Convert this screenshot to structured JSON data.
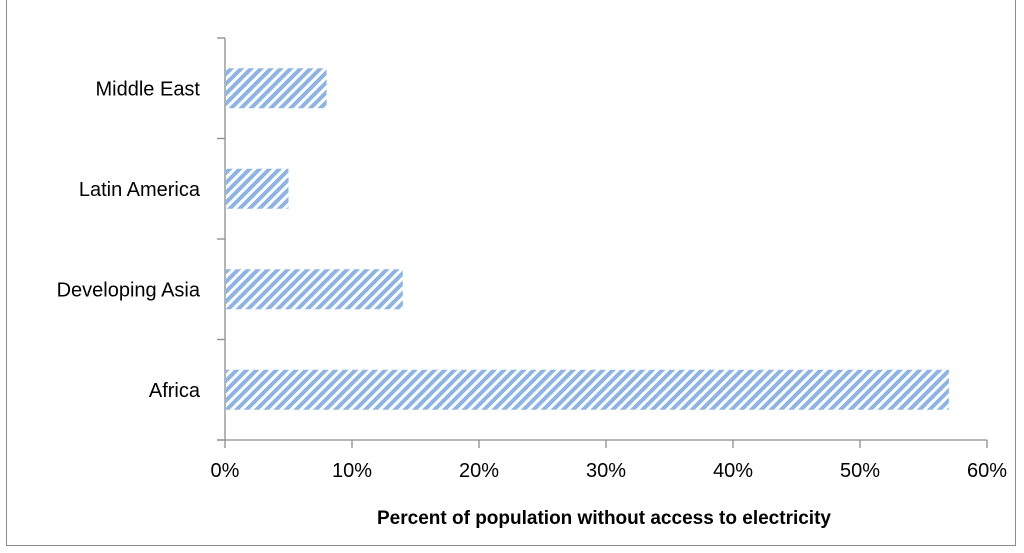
{
  "chart_data": {
    "type": "bar",
    "orientation": "horizontal",
    "title": "",
    "xlabel": "Percent of population without access to electricity",
    "ylabel": "",
    "categories": [
      "Africa",
      "Developing Asia",
      "Latin America",
      "Middle East"
    ],
    "values": [
      57,
      14,
      5,
      8
    ],
    "xlim": [
      0,
      60
    ],
    "x_ticks": [
      "0%",
      "10%",
      "20%",
      "30%",
      "40%",
      "50%",
      "60%"
    ],
    "grid": false,
    "legend": "none",
    "bar_color": "#8db4e2",
    "bar_pattern": "diagonal-hatch"
  }
}
